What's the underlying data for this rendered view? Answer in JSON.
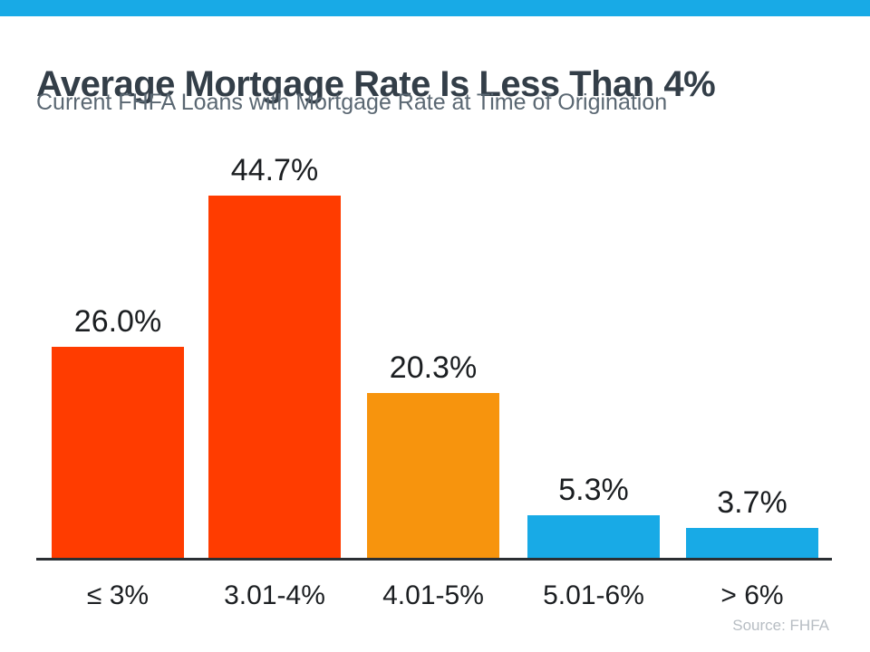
{
  "accent": {
    "top_bar_color": "#18AAE6"
  },
  "header": {
    "title": "Average Mortgage Rate Is Less Than 4%",
    "subtitle": "Current FHFA Loans with Mortgage Rate at Time of Origination"
  },
  "chart_data": {
    "type": "bar",
    "title": "Average Mortgage Rate Is Less Than 4%",
    "subtitle": "Current FHFA Loans with Mortgage Rate at Time of Origination",
    "categories": [
      "≤ 3%",
      "3.01-4%",
      "4.01-5%",
      "5.01-6%",
      "> 6%"
    ],
    "values": [
      26.0,
      44.7,
      20.3,
      5.3,
      3.7
    ],
    "value_labels": [
      "26.0%",
      "44.7%",
      "20.3%",
      "5.3%",
      "3.7%"
    ],
    "colors": [
      "#FF3C00",
      "#FF3C00",
      "#F7940D",
      "#18AAE6",
      "#18AAE6"
    ],
    "xlabel": "",
    "ylabel": "",
    "ylim": [
      0,
      47
    ],
    "grid": false,
    "legend": false,
    "axis_color": "#2B2F33",
    "label_color": "#1B1E21"
  },
  "footer": {
    "source": "Source: FHFA"
  }
}
